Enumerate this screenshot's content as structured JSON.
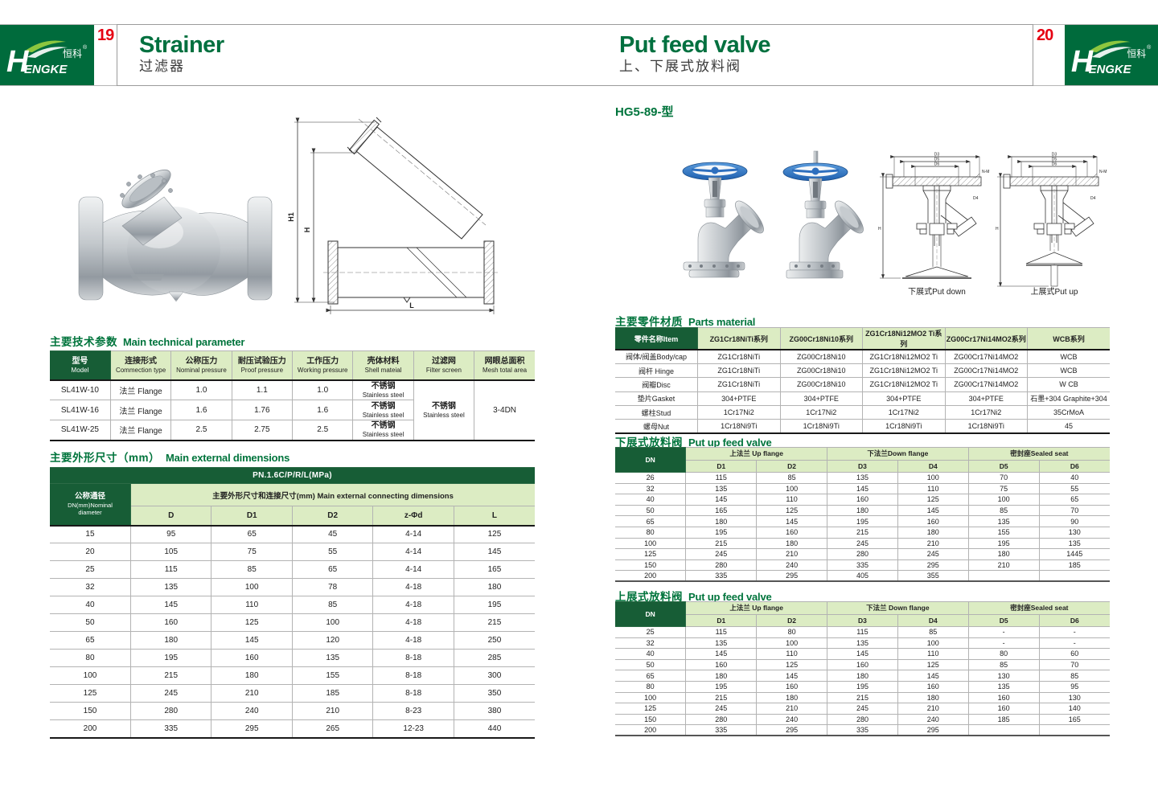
{
  "pages": {
    "left_no": "19",
    "right_no": "20"
  },
  "brand": {
    "name_h": "H",
    "name_rest": "ENGKE",
    "cn": "恒科",
    "reg": "®"
  },
  "header": {
    "left": {
      "title_en": "Strainer",
      "title_cn": "过滤器"
    },
    "right": {
      "title_en": "Put feed valve",
      "title_cn": "上、下展式放料阀"
    }
  },
  "colors": {
    "brand_green": "#006b3c",
    "table_header_green": "#175d36",
    "table_light_green": "#dcecc3",
    "accent_red": "#e60012",
    "title_green": "#00743c",
    "handwheel_blue": "#2e6fbe"
  },
  "left_page": {
    "drawing": {
      "h1": "H1",
      "h": "H",
      "l": "L"
    },
    "tech_params": {
      "title_cn": "主要技术参数",
      "title_en": "Main technical parameter",
      "headers": [
        {
          "cn": "型号",
          "en": "Model"
        },
        {
          "cn": "连接形式",
          "en": "Commection type"
        },
        {
          "cn": "公称压力",
          "en": "Nominal pressure"
        },
        {
          "cn": "耐压试验压力",
          "en": "Proof pressure"
        },
        {
          "cn": "工作压力",
          "en": "Working pressure"
        },
        {
          "cn": "壳体材料",
          "en": "Shell mateial"
        },
        {
          "cn": "过滤网",
          "en": "Filter screen"
        },
        {
          "cn": "网眼总面积",
          "en": "Mesh total area"
        }
      ],
      "rows": [
        [
          "SL41W-10",
          "法兰 Flange",
          "1.0",
          "1.1",
          "1.0"
        ],
        [
          "SL41W-16",
          "法兰 Flange",
          "1.6",
          "1.76",
          "1.6"
        ],
        [
          "SL41W-25",
          "法兰 Flange",
          "2.5",
          "2.75",
          "2.5"
        ]
      ],
      "shell_cn": "不锈钢",
      "shell_en": "Stainless steel",
      "filter_cn": "不锈钢",
      "filter_en": "Stainless steel",
      "mesh_total": "3-4DN"
    },
    "dimensions": {
      "title_cn": "主要外形尺寸（mm）",
      "title_en": "Main external dimensions",
      "pn_banner": "PN.1.6C/P/R/L(MPa)",
      "dn_cn": "公称通径",
      "dn_en": "DN(mm)Nominal",
      "dn_en2": "diameter",
      "group_header": "主要外形尺寸和连接尺寸(mm) Main external connecting dimensions",
      "cols": [
        "D",
        "D1",
        "D2",
        "z-Φd",
        "L"
      ],
      "rows": [
        [
          "15",
          "95",
          "65",
          "45",
          "4-14",
          "125"
        ],
        [
          "20",
          "105",
          "75",
          "55",
          "4-14",
          "145"
        ],
        [
          "25",
          "115",
          "85",
          "65",
          "4-14",
          "165"
        ],
        [
          "32",
          "135",
          "100",
          "78",
          "4-18",
          "180"
        ],
        [
          "40",
          "145",
          "110",
          "85",
          "4-18",
          "195"
        ],
        [
          "50",
          "160",
          "125",
          "100",
          "4-18",
          "215"
        ],
        [
          "65",
          "180",
          "145",
          "120",
          "4-18",
          "250"
        ],
        [
          "80",
          "195",
          "160",
          "135",
          "8-18",
          "285"
        ],
        [
          "100",
          "215",
          "180",
          "155",
          "8-18",
          "300"
        ],
        [
          "125",
          "245",
          "210",
          "185",
          "8-18",
          "350"
        ],
        [
          "150",
          "280",
          "240",
          "210",
          "8-23",
          "380"
        ],
        [
          "200",
          "335",
          "295",
          "265",
          "12-23",
          "440"
        ]
      ]
    }
  },
  "right_page": {
    "model_title": "HG5-89-型",
    "drawing": {
      "d3": "D3",
      "d5": "D5",
      "d6": "D6",
      "nm": "N-M",
      "d4": "D4",
      "h": "H",
      "caption_down": "下展式Put down",
      "caption_up": "上展式Put up"
    },
    "parts_material": {
      "title_cn": "主要零件材质",
      "title_en": "Parts material",
      "headers": [
        "零件名称Item",
        "ZG1Cr18NiTi系列",
        "ZG00Cr18Ni10系列",
        "ZG1Cr18Ni12MO2 Ti系列",
        "ZG00Cr17Ni14MO2系列",
        "WCB系列"
      ],
      "rows": [
        [
          "阀体/阀盖Body/cap",
          "ZG1Cr18NiTi",
          "ZG00Cr18Ni10",
          "ZG1Cr18Ni12MO2 Ti",
          "ZG00Cr17Ni14MO2",
          "WCB"
        ],
        [
          "阀杆 Hinge",
          "ZG1Cr18NiTi",
          "ZG00Cr18Ni10",
          "ZG1Cr18Ni12MO2 Ti",
          "ZG00Cr17Ni14MO2",
          "WCB"
        ],
        [
          "阀瓣Disc",
          "ZG1Cr18NiTi",
          "ZG00Cr18Ni10",
          "ZG1Cr18Ni12MO2 Ti",
          "ZG00Cr17Ni14MO2",
          "W CB"
        ],
        [
          "垫片Gasket",
          "304+PTFE",
          "304+PTFE",
          "304+PTFE",
          "304+PTFE",
          "石墨+304 Graphite+304"
        ],
        [
          "螺柱Stud",
          "1Cr17Ni2",
          "1Cr17Ni2",
          "1Cr17Ni2",
          "1Cr17Ni2",
          "35CrMoA"
        ],
        [
          "螺母Nut",
          "1Cr18Ni9Ti",
          "1Cr18Ni9Ti",
          "1Cr18Ni9Ti",
          "1Cr18Ni9Ti",
          "45"
        ]
      ]
    },
    "down_table": {
      "title_cn": "下展式放料阀",
      "title_en": "Put up feed valve",
      "dn_label": "DN",
      "groups": [
        "上法兰 Up flange",
        "下法兰Down flange",
        "密封座Sealed seat"
      ],
      "cols": [
        "D1",
        "D2",
        "D3",
        "D4",
        "D5",
        "D6"
      ],
      "rows": [
        [
          "26",
          "115",
          "85",
          "135",
          "100",
          "70",
          "40"
        ],
        [
          "32",
          "135",
          "100",
          "145",
          "110",
          "75",
          "55"
        ],
        [
          "40",
          "145",
          "110",
          "160",
          "125",
          "100",
          "65"
        ],
        [
          "50",
          "165",
          "125",
          "180",
          "145",
          "85",
          "70"
        ],
        [
          "65",
          "180",
          "145",
          "195",
          "160",
          "135",
          "90"
        ],
        [
          "80",
          "195",
          "160",
          "215",
          "180",
          "155",
          "130"
        ],
        [
          "100",
          "215",
          "180",
          "245",
          "210",
          "195",
          "135"
        ],
        [
          "125",
          "245",
          "210",
          "280",
          "245",
          "180",
          "1445"
        ],
        [
          "150",
          "280",
          "240",
          "335",
          "295",
          "210",
          "185"
        ],
        [
          "200",
          "335",
          "295",
          "405",
          "355",
          "",
          ""
        ]
      ]
    },
    "up_table": {
      "title_cn": "上展式放料阀",
      "title_en": "Put up feed valve",
      "dn_label": "DN",
      "groups": [
        "上法兰 Up flange",
        "下法兰 Down flange",
        "密封座Sealed seat"
      ],
      "cols": [
        "D1",
        "D2",
        "D3",
        "D4",
        "D5",
        "D6"
      ],
      "rows": [
        [
          "25",
          "115",
          "80",
          "115",
          "85",
          "-",
          "-"
        ],
        [
          "32",
          "135",
          "100",
          "135",
          "100",
          "-",
          "-"
        ],
        [
          "40",
          "145",
          "110",
          "145",
          "110",
          "80",
          "60"
        ],
        [
          "50",
          "160",
          "125",
          "160",
          "125",
          "85",
          "70"
        ],
        [
          "65",
          "180",
          "145",
          "180",
          "145",
          "130",
          "85"
        ],
        [
          "80",
          "195",
          "160",
          "195",
          "160",
          "135",
          "95"
        ],
        [
          "100",
          "215",
          "180",
          "215",
          "180",
          "160",
          "130"
        ],
        [
          "125",
          "245",
          "210",
          "245",
          "210",
          "160",
          "140"
        ],
        [
          "150",
          "280",
          "240",
          "280",
          "240",
          "185",
          "165"
        ],
        [
          "200",
          "335",
          "295",
          "335",
          "295",
          "",
          ""
        ]
      ]
    }
  }
}
